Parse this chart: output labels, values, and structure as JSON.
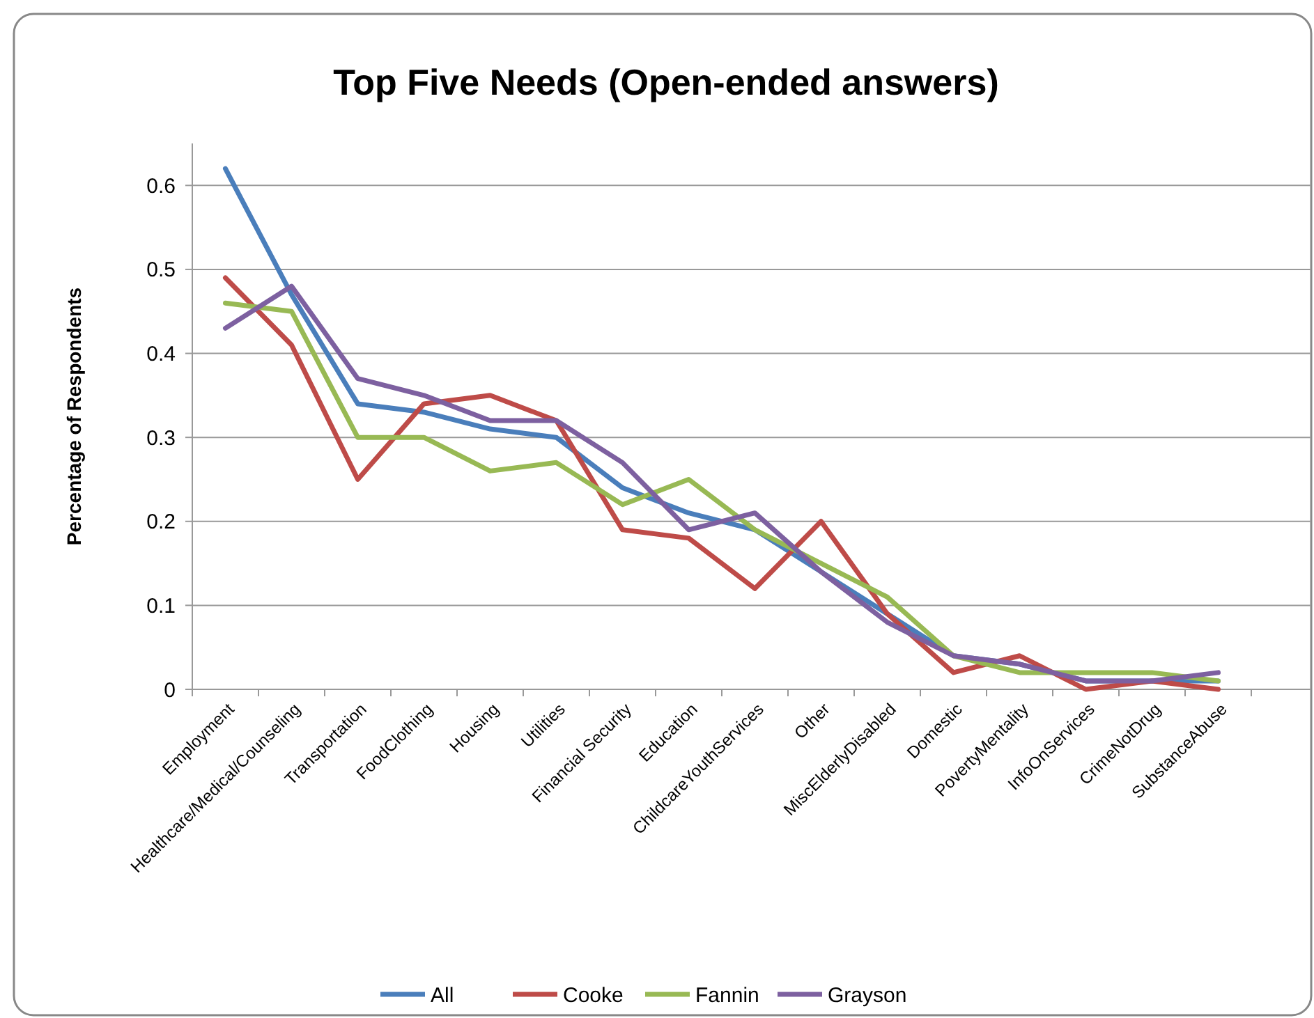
{
  "chart_data": {
    "type": "line",
    "title": "Top Five Needs (Open-ended answers)",
    "ylabel": "Percentage of Respondents",
    "categories": [
      "Employment",
      "Healthcare/Medical/Counseling",
      "Transportation",
      "FoodClothing",
      "Housing",
      "Utilities",
      "Financial Security",
      "Education",
      "ChildcareYouthServices",
      "Other",
      "MiscElderlyDisabled",
      "Domestic",
      "PovertyMentality",
      "InfoOnServices",
      "CrimeNotDrug",
      "SubstanceAbuse"
    ],
    "series": [
      {
        "name": "All",
        "color": "#4a7ebb",
        "values": [
          0.62,
          0.47,
          0.34,
          0.33,
          0.31,
          0.3,
          0.24,
          0.21,
          0.19,
          0.14,
          0.09,
          0.04,
          0.03,
          0.01,
          0.01,
          0.01
        ]
      },
      {
        "name": "Cooke",
        "color": "#be4b48",
        "values": [
          0.49,
          0.41,
          0.25,
          0.34,
          0.35,
          0.32,
          0.19,
          0.18,
          0.12,
          0.2,
          0.09,
          0.02,
          0.04,
          0.0,
          0.01,
          0.0
        ]
      },
      {
        "name": "Fannin",
        "color": "#98b954",
        "values": [
          0.46,
          0.45,
          0.3,
          0.3,
          0.26,
          0.27,
          0.22,
          0.25,
          0.19,
          0.15,
          0.11,
          0.04,
          0.02,
          0.02,
          0.02,
          0.01
        ]
      },
      {
        "name": "Grayson",
        "color": "#7d60a0",
        "values": [
          0.43,
          0.48,
          0.37,
          0.35,
          0.32,
          0.32,
          0.27,
          0.19,
          0.21,
          0.14,
          0.08,
          0.04,
          0.03,
          0.01,
          0.01,
          0.02
        ]
      }
    ],
    "ylim": [
      0,
      0.65
    ],
    "yticks": [
      0,
      0.1,
      0.2,
      0.3,
      0.4,
      0.5,
      0.6
    ],
    "grid": "y",
    "legend": "bottom",
    "marker": "none",
    "line_style": "solid"
  }
}
